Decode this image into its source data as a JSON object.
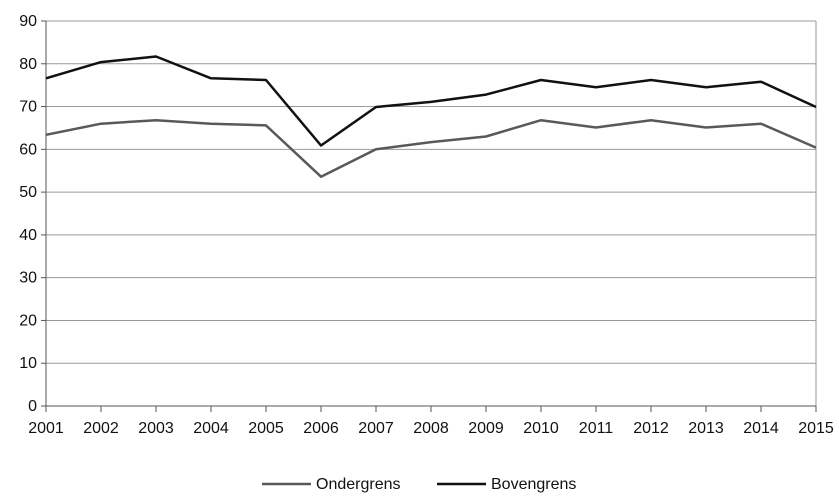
{
  "chart_data": {
    "type": "line",
    "title": "",
    "xlabel": "",
    "ylabel": "",
    "categories": [
      "2001",
      "2002",
      "2003",
      "2004",
      "2005",
      "2006",
      "2007",
      "2008",
      "2009",
      "2010",
      "2011",
      "2012",
      "2013",
      "2014",
      "2015"
    ],
    "y_ticks": [
      "0",
      "10",
      "20",
      "30",
      "40",
      "50",
      "60",
      "70",
      "80",
      "90"
    ],
    "ylim": [
      0,
      90
    ],
    "grid": "horizontal",
    "legend_position": "bottom",
    "series": [
      {
        "name": "Ondergrens",
        "color": "#595959",
        "values": [
          63.4,
          66.0,
          66.8,
          66.0,
          65.6,
          53.6,
          60.0,
          61.7,
          63.0,
          66.8,
          65.1,
          66.8,
          65.1,
          66.0,
          60.4
        ]
      },
      {
        "name": "Bovengrens",
        "color": "#111111",
        "values": [
          76.6,
          80.4,
          81.7,
          76.6,
          76.2,
          60.9,
          69.9,
          71.1,
          72.8,
          76.2,
          74.5,
          76.2,
          74.5,
          75.8,
          69.9
        ]
      }
    ]
  }
}
